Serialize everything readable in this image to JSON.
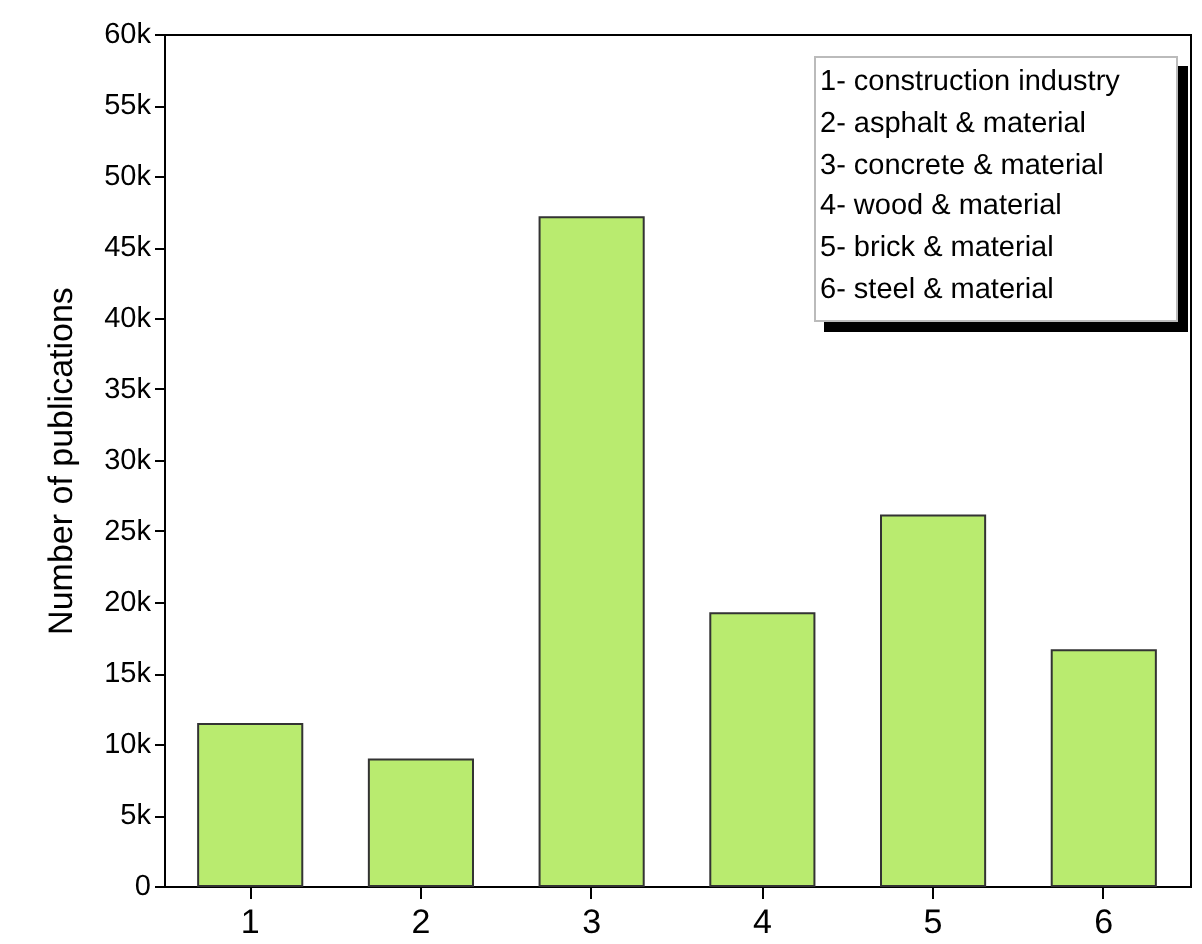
{
  "chart_data": {
    "type": "bar",
    "ylabel": "Number of publications",
    "categories": [
      "1",
      "2",
      "3",
      "4",
      "5",
      "6"
    ],
    "values": [
      11400,
      8900,
      47100,
      19200,
      26100,
      16600
    ],
    "color": "#b9eb6f",
    "ylim": [
      0,
      60000
    ],
    "yticks": [
      {
        "value": 0,
        "label": "0"
      },
      {
        "value": 5000,
        "label": "5k"
      },
      {
        "value": 10000,
        "label": "10k"
      },
      {
        "value": 15000,
        "label": "15k"
      },
      {
        "value": 20000,
        "label": "20k"
      },
      {
        "value": 25000,
        "label": "25k"
      },
      {
        "value": 30000,
        "label": "30k"
      },
      {
        "value": 35000,
        "label": "35k"
      },
      {
        "value": 40000,
        "label": "40k"
      },
      {
        "value": 45000,
        "label": "45k"
      },
      {
        "value": 50000,
        "label": "50k"
      },
      {
        "value": 55000,
        "label": "55k"
      },
      {
        "value": 60000,
        "label": "60k"
      }
    ],
    "grid": false,
    "annotations": [
      "1- construction industry",
      "2- asphalt & material",
      "3- concrete & material",
      "4- wood & material",
      "5- brick & material",
      "6- steel & material"
    ]
  }
}
